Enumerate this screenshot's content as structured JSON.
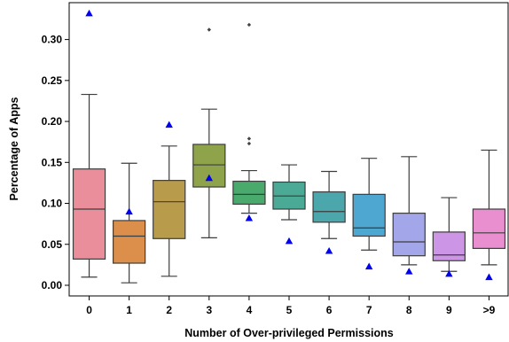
{
  "chart_data": {
    "type": "box",
    "xlabel": "Number of Over-privileged Permissions",
    "ylabel": "Percentage of Apps",
    "ylim": [
      -0.013,
      0.345
    ],
    "yticks": [
      "0.00",
      "0.05",
      "0.10",
      "0.15",
      "0.20",
      "0.25",
      "0.30"
    ],
    "ytick_values": [
      0,
      0.05,
      0.1,
      0.15,
      0.2,
      0.25,
      0.3
    ],
    "categories": [
      "0",
      "1",
      "2",
      "3",
      "4",
      "5",
      "6",
      "7",
      "8",
      "9",
      ">9"
    ],
    "grid": false,
    "boxes": [
      {
        "category": "0",
        "color": "#ea8e9b",
        "whisker_low": 0.01,
        "q1": 0.032,
        "median": 0.093,
        "q3": 0.142,
        "whisker_high": 0.233,
        "outliers": [],
        "mean": 0.332
      },
      {
        "category": "1",
        "color": "#dc8f4a",
        "whisker_low": 0.003,
        "q1": 0.027,
        "median": 0.06,
        "q3": 0.079,
        "whisker_high": 0.149,
        "outliers": [],
        "mean": 0.09
      },
      {
        "category": "2",
        "color": "#b89b4b",
        "whisker_low": 0.011,
        "q1": 0.057,
        "median": 0.102,
        "q3": 0.128,
        "whisker_high": 0.17,
        "outliers": [],
        "mean": 0.196
      },
      {
        "category": "3",
        "color": "#8fa34a",
        "whisker_low": 0.058,
        "q1": 0.12,
        "median": 0.147,
        "q3": 0.172,
        "whisker_high": 0.215,
        "outliers": [
          0.312
        ],
        "mean": 0.131
      },
      {
        "category": "4",
        "color": "#4aaa6d",
        "whisker_low": 0.088,
        "q1": 0.099,
        "median": 0.111,
        "q3": 0.127,
        "whisker_high": 0.14,
        "outliers": [
          0.318,
          0.179,
          0.173
        ],
        "mean": 0.082
      },
      {
        "category": "5",
        "color": "#4baa95",
        "whisker_low": 0.08,
        "q1": 0.093,
        "median": 0.109,
        "q3": 0.126,
        "whisker_high": 0.147,
        "outliers": [],
        "mean": 0.054
      },
      {
        "category": "6",
        "color": "#4ba7ab",
        "whisker_low": 0.057,
        "q1": 0.077,
        "median": 0.09,
        "q3": 0.114,
        "whisker_high": 0.139,
        "outliers": [],
        "mean": 0.042
      },
      {
        "category": "7",
        "color": "#4ea7d0",
        "whisker_low": 0.043,
        "q1": 0.06,
        "median": 0.07,
        "q3": 0.111,
        "whisker_high": 0.155,
        "outliers": [],
        "mean": 0.023
      },
      {
        "category": "8",
        "color": "#a3a6e8",
        "whisker_low": 0.025,
        "q1": 0.036,
        "median": 0.053,
        "q3": 0.088,
        "whisker_high": 0.157,
        "outliers": [],
        "mean": 0.017
      },
      {
        "category": "9",
        "color": "#cc95e6",
        "whisker_low": 0.017,
        "q1": 0.03,
        "median": 0.037,
        "q3": 0.065,
        "whisker_high": 0.107,
        "outliers": [],
        "mean": 0.014
      },
      {
        "category": ">9",
        "color": "#e98ecf",
        "whisker_low": 0.025,
        "q1": 0.045,
        "median": 0.064,
        "q3": 0.093,
        "whisker_high": 0.165,
        "outliers": [],
        "mean": 0.01
      }
    ],
    "mean_marker_color": "#0000ee"
  }
}
